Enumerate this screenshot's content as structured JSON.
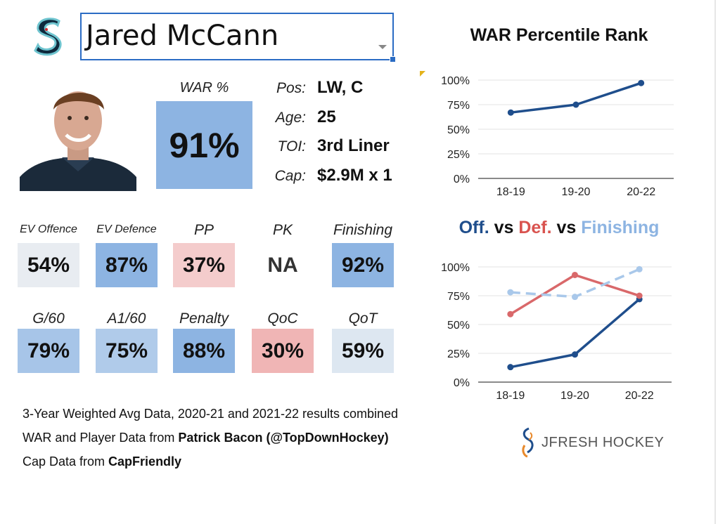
{
  "player": {
    "name": "Jared McCann",
    "war_label": "WAR %",
    "war_value": "91%",
    "info": [
      {
        "label": "Pos:",
        "value": "LW, C"
      },
      {
        "label": "Age:",
        "value": "25"
      },
      {
        "label": "TOI:",
        "value": "3rd Liner"
      },
      {
        "label": "Cap:",
        "value": "$2.9M x 1"
      }
    ]
  },
  "tiles": [
    {
      "label": "EV Offence",
      "value": "54%",
      "color": "#e8ecf1"
    },
    {
      "label": "EV Defence",
      "value": "87%",
      "color": "#8db4e2"
    },
    {
      "label": "PP",
      "value": "37%",
      "color": "#f4cccc"
    },
    {
      "label": "PK",
      "value": "NA",
      "color": "#ffffff"
    },
    {
      "label": "Finishing",
      "value": "92%",
      "color": "#8db4e2"
    },
    {
      "label": "G/60",
      "value": "79%",
      "color": "#a7c5e8"
    },
    {
      "label": "A1/60",
      "value": "75%",
      "color": "#b0cbea"
    },
    {
      "label": "Penalty",
      "value": "88%",
      "color": "#8db4e2"
    },
    {
      "label": "QoC",
      "value": "30%",
      "color": "#f0b5b5"
    },
    {
      "label": "QoT",
      "value": "59%",
      "color": "#dde7f1"
    }
  ],
  "footer": {
    "line1": "3-Year Weighted Avg Data, 2020-21 and 2021-22 results combined",
    "line2_prefix": "WAR and Player Data from ",
    "line2_bold": "Patrick Bacon (@TopDownHockey)",
    "line3_prefix": "Cap Data from ",
    "line3_bold": "CapFriendly"
  },
  "brand": "JFRESH HOCKEY",
  "chart_data": [
    {
      "type": "line",
      "title": "WAR Percentile Rank",
      "categories": [
        "18-19",
        "19-20",
        "20-22"
      ],
      "yticks": [
        "0%",
        "25%",
        "50%",
        "75%",
        "100%"
      ],
      "ylim": [
        0,
        100
      ],
      "grid": true,
      "series": [
        {
          "values": [
            67,
            75,
            97
          ],
          "color": "#1f4e8c",
          "dashed": false
        }
      ]
    },
    {
      "type": "line",
      "title_parts": [
        {
          "text": "Off.",
          "color": "#1f4e8c"
        },
        {
          "text": " vs ",
          "color": "#111111"
        },
        {
          "text": "Def.",
          "color": "#d9534f"
        },
        {
          "text": " vs ",
          "color": "#111111"
        },
        {
          "text": "Finishing",
          "color": "#8db4e2"
        }
      ],
      "categories": [
        "18-19",
        "19-20",
        "20-22"
      ],
      "yticks": [
        "0%",
        "25%",
        "50%",
        "75%",
        "100%"
      ],
      "ylim": [
        0,
        100
      ],
      "grid": true,
      "series": [
        {
          "values": [
            13,
            24,
            72
          ],
          "color": "#1f4e8c",
          "dashed": false
        },
        {
          "values": [
            59,
            93,
            75
          ],
          "color": "#d9686a",
          "dashed": false
        },
        {
          "values": [
            78,
            74,
            98
          ],
          "color": "#a9c8ea",
          "dashed": true
        }
      ]
    }
  ]
}
